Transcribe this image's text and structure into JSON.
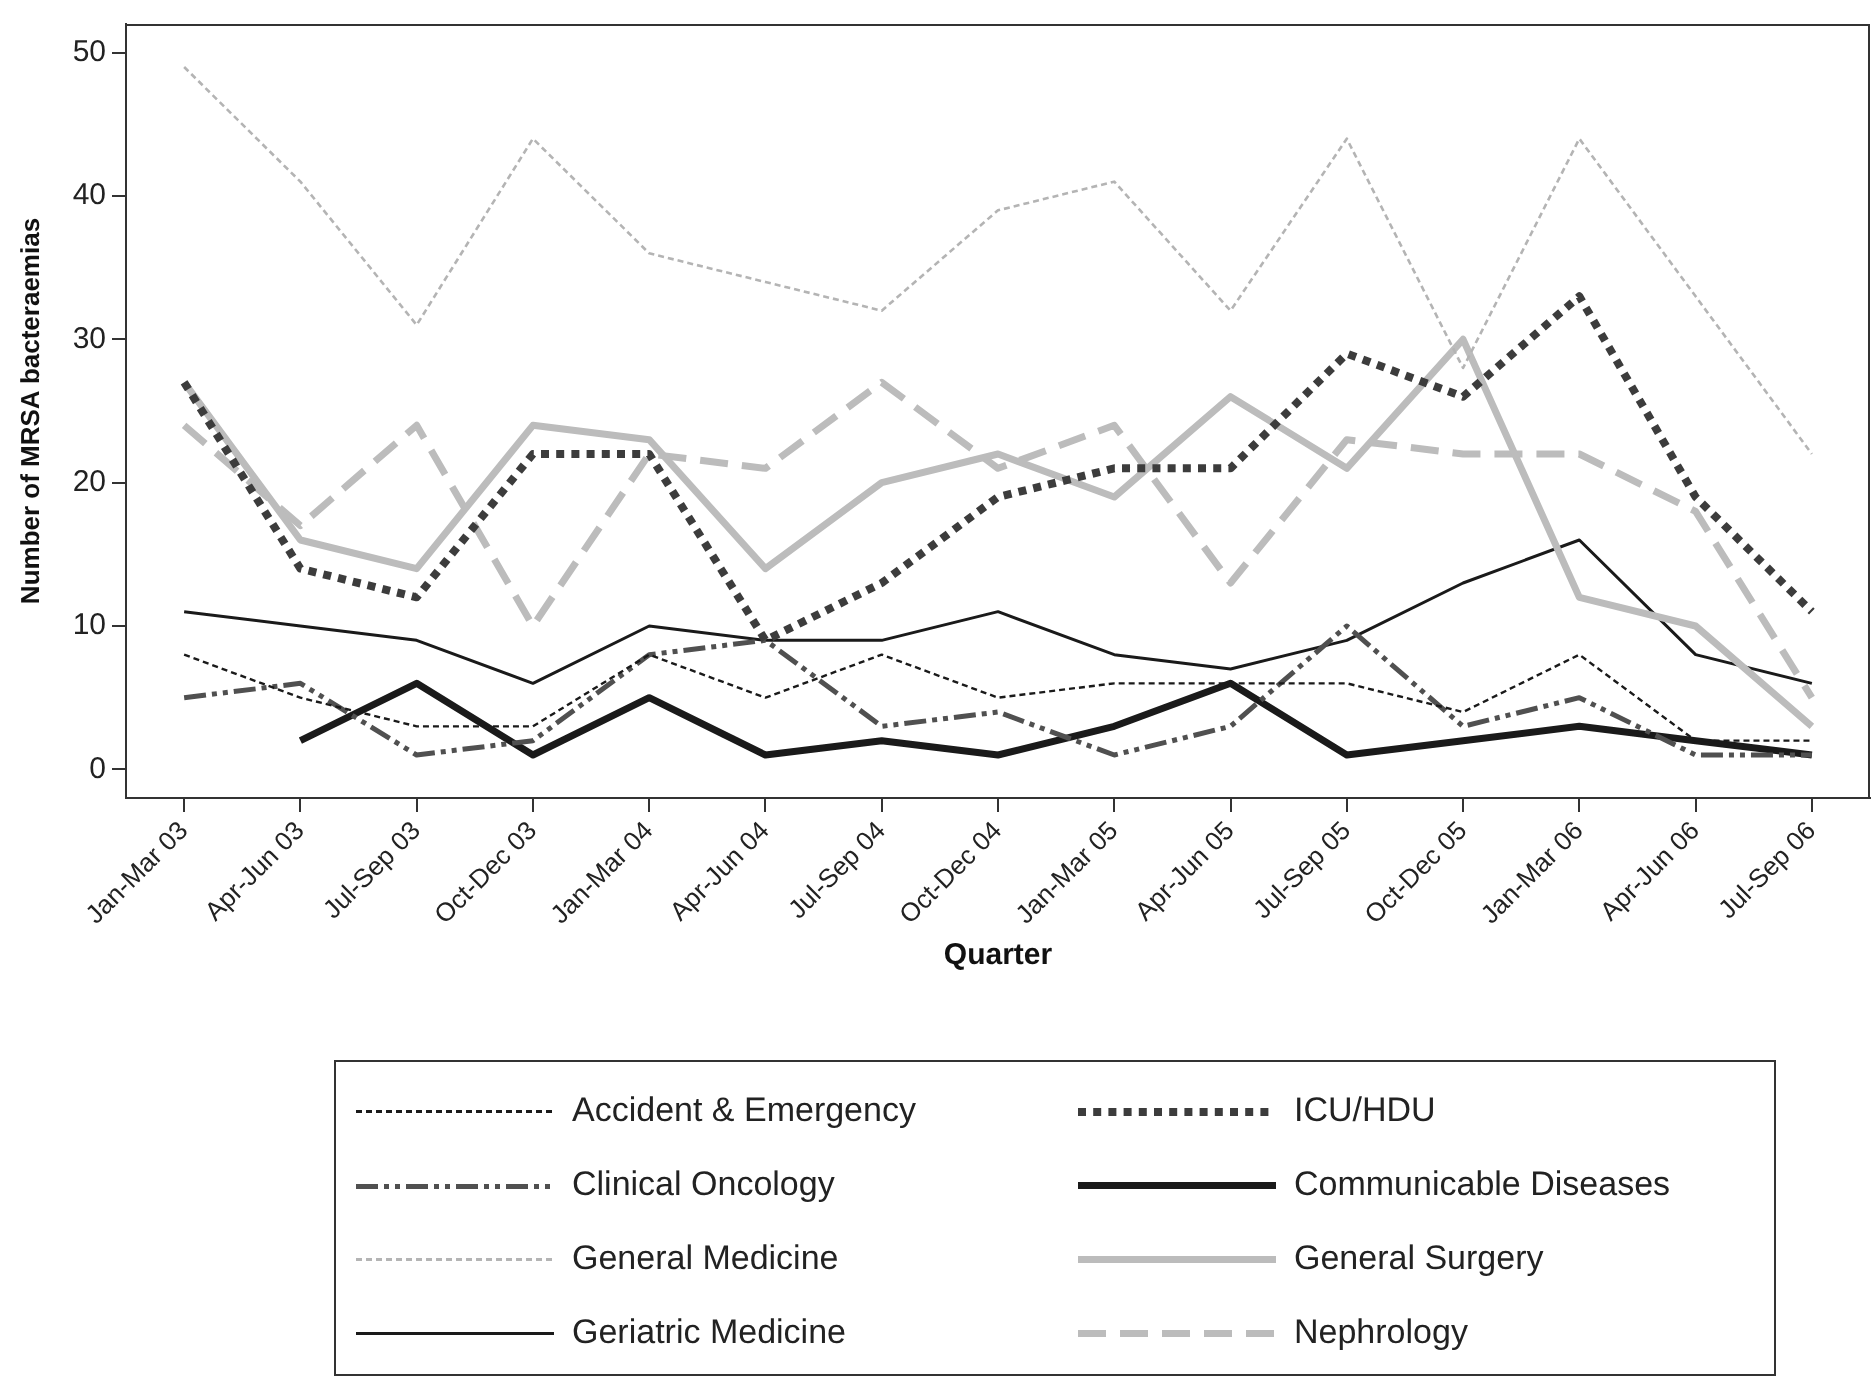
{
  "chart_data": {
    "type": "line",
    "xlabel": "Quarter",
    "ylabel": "Number of MRSA bacteraemias",
    "categories": [
      "Jan-Mar 03",
      "Apr-Jun 03",
      "Jul-Sep 03",
      "Oct-Dec 03",
      "Jan-Mar 04",
      "Apr-Jun 04",
      "Jul-Sep 04",
      "Oct-Dec 04",
      "Jan-Mar 05",
      "Apr-Jun 05",
      "Jul-Sep 05",
      "Oct-Dec 05",
      "Jan-Mar 06",
      "Apr-Jun 06",
      "Jul-Sep 06"
    ],
    "ylim": [
      -2,
      52
    ],
    "yticks": [
      0,
      10,
      20,
      30,
      40,
      50
    ],
    "legend": "bottom",
    "series": [
      {
        "name": "Accident & Emergency",
        "color": "#1a1a1a",
        "line_style": "dotted",
        "values": [
          8,
          5,
          3,
          3,
          8,
          5,
          8,
          5,
          6,
          6,
          6,
          4,
          8,
          2,
          2
        ]
      },
      {
        "name": "ICU/HDU",
        "color": "#3c3c3c",
        "line_style": "dotted",
        "values": [
          27,
          14,
          12,
          22,
          22,
          9,
          13,
          19,
          21,
          21,
          29,
          26,
          33,
          19,
          11
        ]
      },
      {
        "name": "Clinical Oncology",
        "color": "#505050",
        "line_style": "dashdot",
        "values": [
          5,
          6,
          1,
          2,
          8,
          9,
          3,
          4,
          1,
          3,
          10,
          3,
          5,
          1,
          1
        ]
      },
      {
        "name": "Communicable Diseases",
        "color": "#1a1a1a",
        "line_style": "solid",
        "values": [
          null,
          2,
          6,
          1,
          5,
          1,
          2,
          1,
          3,
          6,
          1,
          2,
          3,
          2,
          1
        ]
      },
      {
        "name": "General Medicine",
        "color": "#b4b4b4",
        "line_style": "dotted",
        "values": [
          49,
          41,
          31,
          44,
          36,
          34,
          32,
          39,
          41,
          32,
          44,
          28,
          44,
          33,
          22
        ]
      },
      {
        "name": "General Surgery",
        "color": "#bcbcbc",
        "line_style": "solid",
        "values": [
          27,
          16,
          14,
          24,
          23,
          14,
          20,
          22,
          19,
          26,
          21,
          30,
          12,
          10,
          3
        ]
      },
      {
        "name": "Geriatric Medicine",
        "color": "#1a1a1a",
        "line_style": "solid",
        "values": [
          11,
          10,
          9,
          6,
          10,
          9,
          9,
          11,
          8,
          7,
          9,
          13,
          16,
          8,
          6
        ]
      },
      {
        "name": "Nephrology",
        "color": "#bcbcbc",
        "line_style": "dashed",
        "values": [
          24,
          17,
          24,
          10,
          22,
          21,
          27,
          21,
          24,
          13,
          23,
          22,
          22,
          18,
          5
        ]
      }
    ]
  }
}
